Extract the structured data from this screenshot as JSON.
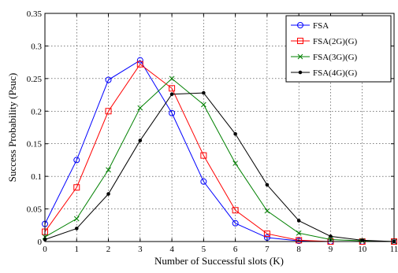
{
  "chart_data": {
    "type": "line",
    "title": "",
    "xlabel": "Number of Successful slots (K)",
    "ylabel": "Success Probability (Psuc)",
    "x": [
      0,
      1,
      2,
      3,
      4,
      5,
      6,
      7,
      8,
      9,
      10,
      11
    ],
    "xlim": [
      0,
      11
    ],
    "ylim": [
      0,
      0.35
    ],
    "xticks": [
      "0",
      "1",
      "2",
      "3",
      "4",
      "5",
      "6",
      "7",
      "8",
      "9",
      "10",
      "11"
    ],
    "yticks": [
      "0",
      "0.05",
      "0.1",
      "0.15",
      "0.2",
      "0.25",
      "0.3",
      "0.35"
    ],
    "grid": true,
    "legend_position": "top-right",
    "series": [
      {
        "name": "FSA",
        "color": "#0000ff",
        "marker": "circle",
        "values": [
          0.027,
          0.125,
          0.248,
          0.278,
          0.197,
          0.092,
          0.028,
          0.006,
          0.001,
          0.0,
          0.0,
          0.0
        ]
      },
      {
        "name": "FSA(2G)(G)",
        "color": "#ff0000",
        "marker": "square",
        "values": [
          0.015,
          0.083,
          0.2,
          0.272,
          0.235,
          0.132,
          0.048,
          0.012,
          0.002,
          0.0,
          0.0,
          0.0
        ]
      },
      {
        "name": "FSA(3G)(G)",
        "color": "#008000",
        "marker": "x",
        "values": [
          0.007,
          0.035,
          0.11,
          0.205,
          0.25,
          0.21,
          0.12,
          0.047,
          0.013,
          0.003,
          0.001,
          0.0
        ]
      },
      {
        "name": "FSA(4G)(G)",
        "color": "#000000",
        "marker": "dot",
        "values": [
          0.003,
          0.02,
          0.073,
          0.155,
          0.226,
          0.228,
          0.165,
          0.087,
          0.032,
          0.008,
          0.002,
          0.0
        ]
      }
    ]
  }
}
